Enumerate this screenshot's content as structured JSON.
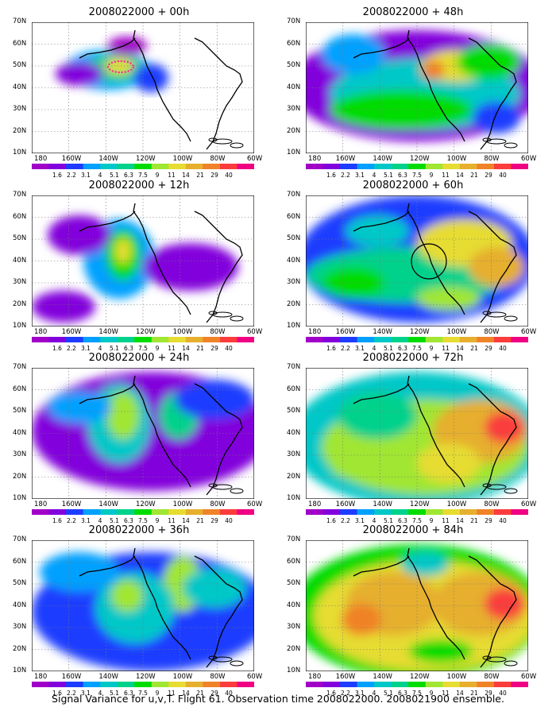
{
  "caption": "Signal Variance for u,v,T. Flight 61. Observation time 2008022000. 2008021900 ensemble.",
  "panel_titles": [
    "2008022000 + 00h",
    "2008022000 + 48h",
    "2008022000 + 12h",
    "2008022000 + 60h",
    "2008022000 + 24h",
    "2008022000 + 72h",
    "2008022000 + 36h",
    "2008022000 + 84h"
  ],
  "lat_labels": [
    "70N",
    "60N",
    "50N",
    "40N",
    "30N",
    "20N",
    "10N"
  ],
  "lon_labels": [
    "180",
    "160W",
    "140W",
    "120W",
    "100W",
    "80W",
    "60W"
  ],
  "colorbar_labels": [
    "1.6",
    "2.2",
    "3.1",
    "4",
    "5.1",
    "6.3",
    "7.5",
    "9",
    "11",
    "14",
    "21",
    "29",
    "40"
  ],
  "colors": {
    "bins": [
      "#a000c8",
      "#8200dc",
      "#1e3cff",
      "#00a0ff",
      "#00c8c8",
      "#00d28c",
      "#00dc00",
      "#a0e632",
      "#e6dc32",
      "#e6af2d",
      "#f08228",
      "#fa3c3c",
      "#f00082"
    ]
  },
  "chart_data": {
    "type": "heatmap",
    "panels": [
      {
        "forecast_hour": 0,
        "lead_time_label": "+ 00h"
      },
      {
        "forecast_hour": 48,
        "lead_time_label": "+ 48h"
      },
      {
        "forecast_hour": 12,
        "lead_time_label": "+ 12h"
      },
      {
        "forecast_hour": 60,
        "lead_time_label": "+ 60h"
      },
      {
        "forecast_hour": 24,
        "lead_time_label": "+ 24h"
      },
      {
        "forecast_hour": 72,
        "lead_time_label": "+ 72h"
      },
      {
        "forecast_hour": 36,
        "lead_time_label": "+ 36h"
      },
      {
        "forecast_hour": 84,
        "lead_time_label": "+ 84h"
      }
    ],
    "lon_range": [
      "180",
      "60W"
    ],
    "lat_range": [
      "10N",
      "70N"
    ],
    "colorbar_levels": [
      1.6,
      2.2,
      3.1,
      4,
      5.1,
      6.3,
      7.5,
      9,
      11,
      14,
      21,
      29,
      40
    ],
    "grid": true
  }
}
